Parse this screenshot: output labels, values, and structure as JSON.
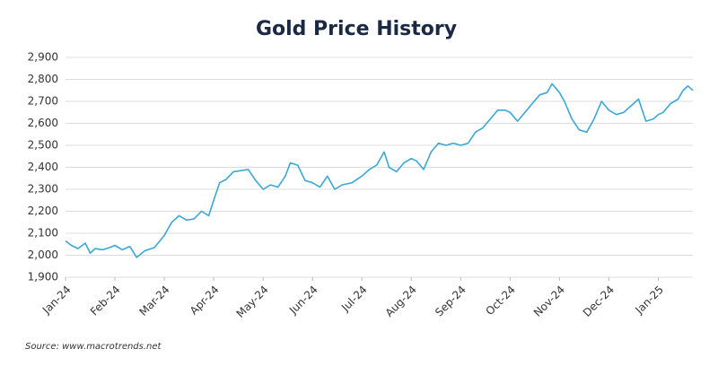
{
  "chart_data": {
    "type": "line",
    "title": "Gold Price History",
    "source": "Source: www.macrotrends.net",
    "color": "#3ba7d6",
    "grid": true,
    "x": [
      0,
      0.12,
      0.25,
      0.4,
      0.5,
      0.6,
      0.75,
      0.9,
      1.0,
      1.15,
      1.3,
      1.44,
      1.6,
      1.8,
      2.0,
      2.15,
      2.3,
      2.45,
      2.6,
      2.75,
      2.9,
      3.0,
      3.12,
      3.25,
      3.4,
      3.55,
      3.7,
      3.85,
      4.0,
      4.15,
      4.3,
      4.45,
      4.55,
      4.7,
      4.85,
      5.0,
      5.15,
      5.3,
      5.45,
      5.6,
      5.8,
      6.0,
      6.15,
      6.3,
      6.45,
      6.55,
      6.7,
      6.85,
      7.0,
      7.1,
      7.25,
      7.4,
      7.55,
      7.7,
      7.85,
      8.0,
      8.15,
      8.3,
      8.45,
      8.6,
      8.75,
      8.9,
      9.0,
      9.15,
      9.3,
      9.45,
      9.6,
      9.75,
      9.85,
      10.0,
      10.1,
      10.25,
      10.4,
      10.55,
      10.7,
      10.85,
      11.0,
      11.15,
      11.3,
      11.45,
      11.6,
      11.75,
      11.9,
      12.0,
      12.1,
      12.25,
      12.4,
      12.5,
      12.6,
      12.7
    ],
    "values": [
      2065,
      2045,
      2030,
      2055,
      2010,
      2030,
      2025,
      2035,
      2045,
      2025,
      2040,
      1990,
      2020,
      2035,
      2090,
      2150,
      2180,
      2160,
      2165,
      2200,
      2180,
      2250,
      2330,
      2345,
      2380,
      2385,
      2390,
      2340,
      2300,
      2320,
      2310,
      2360,
      2420,
      2410,
      2340,
      2330,
      2310,
      2360,
      2300,
      2320,
      2330,
      2360,
      2390,
      2410,
      2470,
      2400,
      2380,
      2420,
      2440,
      2430,
      2390,
      2470,
      2510,
      2500,
      2510,
      2500,
      2510,
      2560,
      2580,
      2620,
      2660,
      2660,
      2650,
      2610,
      2650,
      2690,
      2730,
      2740,
      2780,
      2740,
      2700,
      2620,
      2570,
      2560,
      2620,
      2700,
      2660,
      2640,
      2650,
      2680,
      2710,
      2610,
      2620,
      2640,
      2650,
      2690,
      2710,
      2750,
      2770,
      2750
    ],
    "xlim": [
      0,
      12.7
    ],
    "xticks": [
      {
        "value": 0,
        "label": "Jan-24"
      },
      {
        "value": 1,
        "label": "Feb-24"
      },
      {
        "value": 2,
        "label": "Mar-24"
      },
      {
        "value": 3,
        "label": "Apr-24"
      },
      {
        "value": 4,
        "label": "May-24"
      },
      {
        "value": 5,
        "label": "Jun-24"
      },
      {
        "value": 6,
        "label": "Jul-24"
      },
      {
        "value": 7,
        "label": "Aug-24"
      },
      {
        "value": 8,
        "label": "Sep-24"
      },
      {
        "value": 9,
        "label": "Oct-24"
      },
      {
        "value": 10,
        "label": "Nov-24"
      },
      {
        "value": 11,
        "label": "Dec-24"
      },
      {
        "value": 12,
        "label": "Jan-25"
      }
    ],
    "ylim": [
      1900,
      2900
    ],
    "yticks": [
      {
        "value": 1900,
        "label": "1,900"
      },
      {
        "value": 2000,
        "label": "2,000"
      },
      {
        "value": 2100,
        "label": "2,100"
      },
      {
        "value": 2200,
        "label": "2,200"
      },
      {
        "value": 2300,
        "label": "2,300"
      },
      {
        "value": 2400,
        "label": "2,400"
      },
      {
        "value": 2500,
        "label": "2,500"
      },
      {
        "value": 2600,
        "label": "2,600"
      },
      {
        "value": 2700,
        "label": "2,700"
      },
      {
        "value": 2800,
        "label": "2,800"
      },
      {
        "value": 2900,
        "label": "2,900"
      }
    ]
  }
}
